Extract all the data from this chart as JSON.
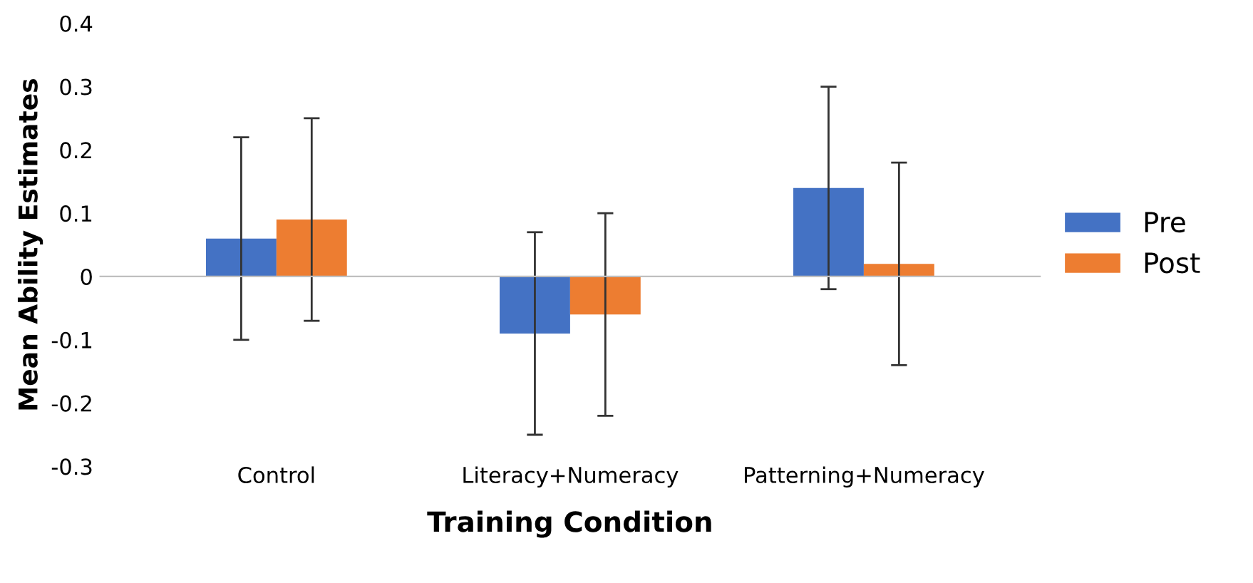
{
  "chart_data": {
    "type": "bar",
    "xlabel": "Training Condition",
    "ylabel": "Mean Ability Estimates",
    "categories": [
      "Control",
      "Literacy+Numeracy",
      "Patterning+Numeracy"
    ],
    "series": [
      {
        "name": "Pre",
        "color": "#4472c4",
        "values": [
          0.06,
          -0.09,
          0.14
        ],
        "errors": [
          0.16,
          0.16,
          0.16
        ]
      },
      {
        "name": "Post",
        "color": "#ed7d31",
        "values": [
          0.09,
          -0.06,
          0.02
        ],
        "errors": [
          0.16,
          0.16,
          0.16
        ]
      }
    ],
    "ylim": [
      -0.3,
      0.4
    ],
    "yticks": [
      -0.3,
      -0.2,
      -0.1,
      0,
      0.1,
      0.2,
      0.3,
      0.4
    ],
    "legend": "right"
  }
}
